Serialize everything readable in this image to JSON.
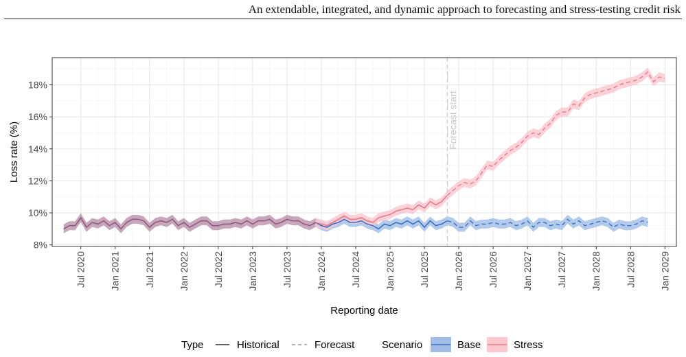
{
  "header": {
    "running_title": "An extendable, integrated, and dynamic approach to forecasting and stress-testing credit risk"
  },
  "chart_data": {
    "type": "line",
    "title": "",
    "xlabel": "Reporting date",
    "ylabel": "Loss rate (%)",
    "x_ticks": [
      "Jul 2020",
      "Jan 2021",
      "Jul 2021",
      "Jan 2022",
      "Jul 2022",
      "Jan 2023",
      "Jul 2023",
      "Jan 2024",
      "Jul 2024",
      "Jan 2025",
      "Jul 2025",
      "Jan 2026",
      "Jul 2026",
      "Jan 2027",
      "Jul 2027",
      "Jan 2028",
      "Jul 2028",
      "Jan 2029"
    ],
    "y_ticks": [
      "8%",
      "10%",
      "12%",
      "14%",
      "16%",
      "18%"
    ],
    "ylim": [
      7.9,
      19.7
    ],
    "xlim": [
      "2020-02",
      "2029-03"
    ],
    "grid": true,
    "forecast_start": "2025-11",
    "forecast_annotation": "Forecast start",
    "colors": {
      "base": "#3a6fc4",
      "base_band": "#9fbde6",
      "stress": "#e87a8a",
      "stress_band": "#fbc6cd",
      "overlap_line": "#8e5a7e",
      "overlap_band": "#b58aa6",
      "forecast_line": "#c8c8c8"
    },
    "legend": {
      "position": "bottom",
      "type_title": "Type",
      "type_entries": [
        "Historical",
        "Forecast"
      ],
      "scenario_title": "Scenario",
      "scenario_entries": [
        "Base",
        "Stress"
      ]
    },
    "series": [
      {
        "name": "Base",
        "start": "2020-04",
        "values": [
          9.0,
          9.2,
          9.2,
          9.7,
          9.1,
          9.4,
          9.3,
          9.5,
          9.2,
          9.4,
          9.0,
          9.4,
          9.6,
          9.6,
          9.5,
          9.1,
          9.4,
          9.5,
          9.4,
          9.6,
          9.2,
          9.4,
          9.1,
          9.3,
          9.5,
          9.5,
          9.2,
          9.2,
          9.3,
          9.3,
          9.4,
          9.3,
          9.5,
          9.3,
          9.5,
          9.5,
          9.6,
          9.3,
          9.4,
          9.6,
          9.5,
          9.5,
          9.3,
          9.2,
          9.4,
          9.2,
          9.1,
          9.3,
          9.4,
          9.6,
          9.4,
          9.4,
          9.5,
          9.3,
          9.2,
          9.0,
          9.3,
          9.2,
          9.4,
          9.3,
          9.5,
          9.3,
          9.5,
          9.1,
          9.5,
          9.2,
          9.3,
          9.5,
          9.4,
          9.1,
          9.1,
          9.5,
          9.2,
          9.3,
          9.3,
          9.4,
          9.3,
          9.3,
          9.4,
          9.2,
          9.3,
          9.5,
          9.1,
          9.4,
          9.4,
          9.2,
          9.3,
          9.2,
          9.6,
          9.3,
          9.5,
          9.2,
          9.3,
          9.4,
          9.5,
          9.4,
          9.1,
          9.3,
          9.2,
          9.2,
          9.3,
          9.5,
          9.4
        ],
        "band_halfwidth": 0.28
      },
      {
        "name": "Stress",
        "start": "2020-04",
        "values": [
          9.0,
          9.2,
          9.2,
          9.7,
          9.1,
          9.4,
          9.3,
          9.5,
          9.2,
          9.4,
          9.0,
          9.4,
          9.6,
          9.6,
          9.5,
          9.1,
          9.4,
          9.5,
          9.4,
          9.6,
          9.2,
          9.4,
          9.1,
          9.3,
          9.5,
          9.5,
          9.2,
          9.2,
          9.3,
          9.3,
          9.4,
          9.3,
          9.5,
          9.3,
          9.5,
          9.5,
          9.6,
          9.3,
          9.4,
          9.6,
          9.5,
          9.5,
          9.3,
          9.2,
          9.4,
          9.3,
          9.2,
          9.4,
          9.6,
          9.8,
          9.6,
          9.6,
          9.7,
          9.5,
          9.4,
          9.7,
          9.8,
          9.9,
          10.1,
          10.2,
          10.3,
          10.2,
          10.5,
          10.3,
          10.7,
          10.5,
          10.7,
          11.1,
          11.4,
          11.7,
          11.9,
          11.8,
          12.0,
          12.5,
          13.0,
          12.9,
          13.3,
          13.6,
          13.9,
          14.1,
          14.4,
          14.8,
          15.0,
          14.9,
          15.3,
          15.6,
          16.1,
          16.3,
          16.3,
          16.8,
          16.7,
          17.2,
          17.4,
          17.5,
          17.6,
          17.7,
          17.8,
          18.0,
          18.1,
          18.2,
          18.3,
          18.5,
          18.8,
          18.2,
          18.5,
          18.4
        ],
        "band_halfwidth": 0.28
      }
    ]
  }
}
